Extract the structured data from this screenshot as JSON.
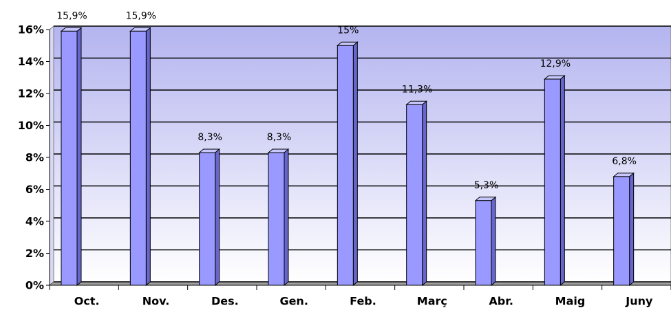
{
  "chart_data": {
    "type": "bar3d",
    "categories": [
      "Oct.",
      "Nov.",
      "Des.",
      "Gen.",
      "Feb.",
      "Març",
      "Abr.",
      "Maig",
      "Juny"
    ],
    "values": [
      15.9,
      15.9,
      8.3,
      8.3,
      15,
      11.3,
      5.3,
      12.9,
      6.8
    ],
    "value_labels": [
      "15,9%",
      "15,9%",
      "8,3%",
      "8,3%",
      "15%",
      "11,3%",
      "5,3%",
      "12,9%",
      "6,8%"
    ],
    "color": "#9999ff",
    "ylim": [
      0,
      16
    ],
    "yticks": [
      {
        "value": 0,
        "label": "0%"
      },
      {
        "value": 2,
        "label": "2%"
      },
      {
        "value": 4,
        "label": "4%"
      },
      {
        "value": 6,
        "label": "6%"
      },
      {
        "value": 8,
        "label": "8%"
      },
      {
        "value": 10,
        "label": "10%"
      },
      {
        "value": 12,
        "label": "12%"
      },
      {
        "value": 14,
        "label": "14%"
      },
      {
        "value": 16,
        "label": "16%"
      }
    ],
    "grid": true
  }
}
